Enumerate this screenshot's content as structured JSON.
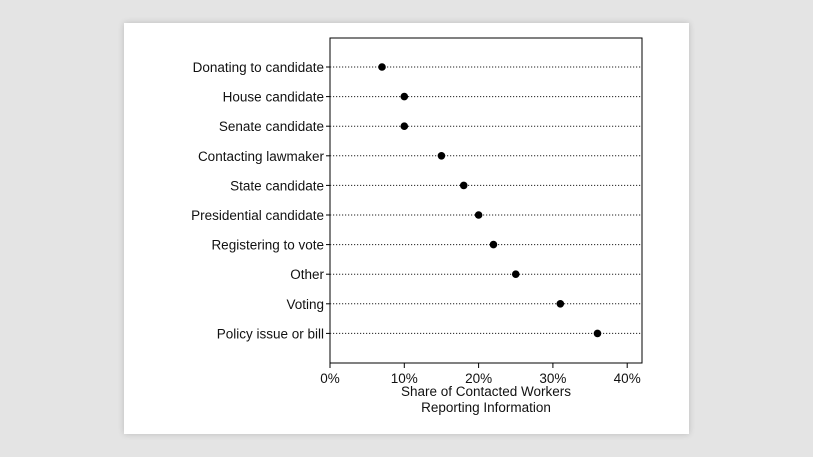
{
  "chart_data": {
    "type": "scatter",
    "categories": [
      "Donating to candidate",
      "House candidate",
      "Senate candidate",
      "Contacting lawmaker",
      "State candidate",
      "Presidential candidate",
      "Registering to vote",
      "Other",
      "Voting",
      "Policy issue or bill"
    ],
    "values": [
      7,
      10,
      10,
      15,
      18,
      20,
      22,
      25,
      31,
      36
    ],
    "xlim": [
      0,
      42
    ],
    "xticks": [
      0,
      10,
      20,
      30,
      40
    ],
    "xtick_labels": [
      "0%",
      "10%",
      "20%",
      "30%",
      "40%"
    ],
    "xlabel_lines": [
      "Share of Contacted Workers",
      "Reporting Information"
    ],
    "ylabel": "",
    "title": "",
    "grid": "dotted horizontal guide lines per category",
    "legend": "none",
    "colors": {
      "point": "#000000",
      "guide": "#222222",
      "frame": "#000000"
    }
  }
}
